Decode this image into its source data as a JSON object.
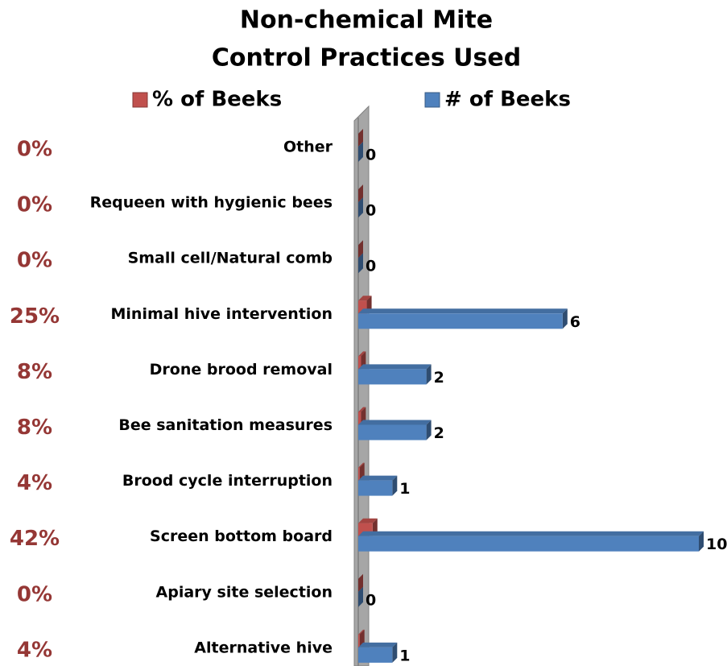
{
  "chart_data": {
    "type": "bar",
    "title": [
      "Non-chemical Mite",
      "Control Practices Used"
    ],
    "categories": [
      "Other",
      "Requeen with hygienic bees",
      "Small cell/Natural comb",
      "Minimal hive intervention",
      "Drone brood removal",
      "Bee sanitation measures",
      "Brood cycle interruption",
      "Screen bottom board",
      "Apiary site selection",
      "Alternative hive"
    ],
    "series": [
      {
        "name": "% of Beeks",
        "color": "#c0504d",
        "values": [
          0,
          0,
          0,
          25,
          8,
          8,
          4,
          42,
          0,
          4
        ],
        "value_labels": [
          "0%",
          "0%",
          "0%",
          "25%",
          "8%",
          "8%",
          "4%",
          "42%",
          "0%",
          "4%"
        ]
      },
      {
        "name": "# of Beeks",
        "color": "#4f81bd",
        "values": [
          0,
          0,
          0,
          6,
          2,
          2,
          1,
          10,
          0,
          1
        ]
      }
    ],
    "orientation": "horizontal"
  }
}
